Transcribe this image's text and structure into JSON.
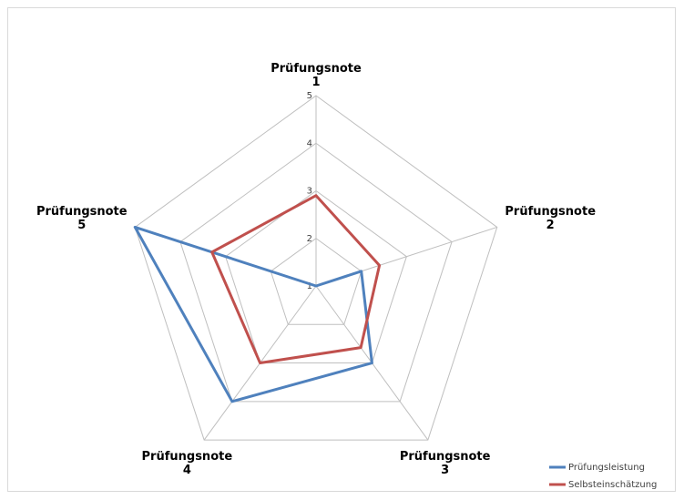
{
  "chart_data": {
    "type": "radar",
    "categories": [
      "Prüfungsnote 1",
      "Prüfungsnote 2",
      "Prüfungsnote 3",
      "Prüfungsnote 4",
      "Prüfungsnote 5"
    ],
    "ylim": [
      1,
      5
    ],
    "yticks": [
      1,
      2,
      3,
      4,
      5
    ],
    "grid": true,
    "series": [
      {
        "name": "Prüfungsleistung",
        "color": "#4f81bd",
        "values": [
          1,
          2,
          3,
          4,
          5
        ]
      },
      {
        "name": "Selbsteinschätzung",
        "color": "#c0504d",
        "values": [
          2.9,
          2.4,
          2.6,
          3,
          3.3
        ]
      }
    ]
  }
}
